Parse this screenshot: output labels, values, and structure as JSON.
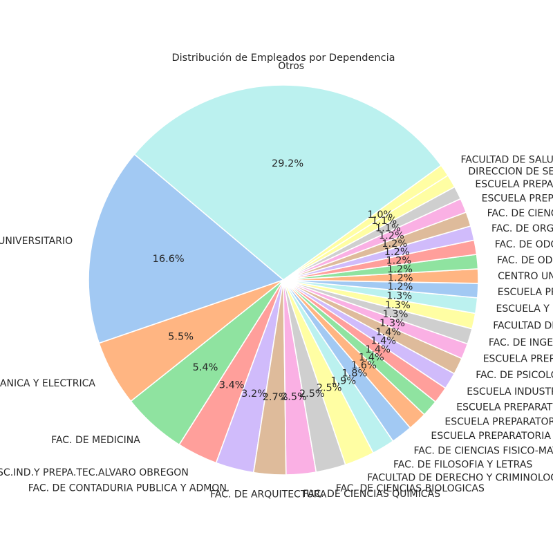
{
  "chart_data": {
    "type": "pie",
    "title": "Distribución de Empleados por Dependencia",
    "start_angle_deg": 36,
    "counterclockwise": true,
    "slices": [
      {
        "label": "Otros",
        "value": 29.2,
        "pct_label": "29.2%",
        "color": "#bbf1ef"
      },
      {
        "label": "HOSPITAL UNIVERSITARIO",
        "value": 16.6,
        "pct_label": "16.6%",
        "color": "#a2c9f3"
      },
      {
        "label": "FAC. DE INGENIERIA MECANICA Y ELECTRICA",
        "value": 5.5,
        "pct_label": "5.5%",
        "color": "#ffb582"
      },
      {
        "label": "FAC. DE MEDICINA",
        "value": 5.4,
        "pct_label": "5.4%",
        "color": "#8fe3a0"
      },
      {
        "label": "ESC.IND.Y PREPA.TEC.ALVARO OBREGON",
        "value": 3.4,
        "pct_label": "3.4%",
        "color": "#ff9f9b"
      },
      {
        "label": "FAC. DE CONTADURIA PUBLICA Y ADMON.",
        "value": 3.2,
        "pct_label": "3.2%",
        "color": "#d0bbfb"
      },
      {
        "label": "FAC. DE ARQUITECTURA",
        "value": 2.7,
        "pct_label": "2.7%",
        "color": "#debb9b"
      },
      {
        "label": "FAC. DE CIENCIAS QUIMICAS",
        "value": 2.5,
        "pct_label": "2.5%",
        "color": "#fab0e4"
      },
      {
        "label": "FAC. DE CIENCIAS BIOLOGICAS",
        "value": 2.5,
        "pct_label": "2.5%",
        "color": "#cfcfcf"
      },
      {
        "label": "FACULTAD DE DERECHO Y CRIMINOLOGIA",
        "value": 2.5,
        "pct_label": "2.5%",
        "color": "#fffea3"
      },
      {
        "label": "FAC. DE FILOSOFIA Y LETRAS",
        "value": 1.9,
        "pct_label": "1.9%",
        "color": "#bbf1ef"
      },
      {
        "label": "FAC. DE CIENCIAS FISICO-MATEMATICAS",
        "value": 1.8,
        "pct_label": "1.8%",
        "color": "#a2c9f3"
      },
      {
        "label": "ESCUELA PREPARATORIA",
        "value": 1.6,
        "pct_label": "1.6%",
        "color": "#ffb582"
      },
      {
        "label": "ESCUELA PREPARATORIA",
        "value": 1.4,
        "pct_label": "1.4%",
        "color": "#8fe3a0"
      },
      {
        "label": "ESCUELA PREPARATORIA",
        "value": 1.4,
        "pct_label": "1.4%",
        "color": "#ff9f9b"
      },
      {
        "label": "ESCUELA INDUSTRIAL",
        "value": 1.4,
        "pct_label": "1.4%",
        "color": "#d0bbfb"
      },
      {
        "label": "FAC. DE PSICOLOGIA",
        "value": 1.4,
        "pct_label": "1.4%",
        "color": "#debb9b"
      },
      {
        "label": "ESCUELA PREPARATORIA",
        "value": 1.3,
        "pct_label": "1.3%",
        "color": "#fab0e4"
      },
      {
        "label": "FAC. DE INGENIERIA CIVIL",
        "value": 1.3,
        "pct_label": "1.3%",
        "color": "#cfcfcf"
      },
      {
        "label": "FACULTAD DE",
        "value": 1.3,
        "pct_label": "1.3%",
        "color": "#fffea3"
      },
      {
        "label": "ESCUELA Y",
        "value": 1.3,
        "pct_label": "1.3%",
        "color": "#bbf1ef"
      },
      {
        "label": "ESCUELA PREPARATORIA",
        "value": 1.2,
        "pct_label": "1.2%",
        "color": "#a2c9f3"
      },
      {
        "label": "CENTRO UNIVERSITARIO",
        "value": 1.2,
        "pct_label": "1.2%",
        "color": "#ffb582"
      },
      {
        "label": "FAC. DE ODONTOLOGIA",
        "value": 1.2,
        "pct_label": "1.2%",
        "color": "#8fe3a0"
      },
      {
        "label": "FAC. DE ODONTOLOGIA",
        "value": 1.2,
        "pct_label": "1.2%",
        "color": "#ff9f9b"
      },
      {
        "label": "FAC. DE ORGANIZACION DEPORTIVA",
        "value": 1.2,
        "pct_label": "1.2%",
        "color": "#d0bbfb"
      },
      {
        "label": "FAC. DE CIENCIAS POLITICAS",
        "value": 1.2,
        "pct_label": "1.2%",
        "color": "#debb9b"
      },
      {
        "label": "ESCUELA PREPARATORIA",
        "value": 1.2,
        "pct_label": "1.2%",
        "color": "#fab0e4"
      },
      {
        "label": "ESCUELA PREPARATORIA",
        "value": 1.1,
        "pct_label": "1.1%",
        "color": "#cfcfcf"
      },
      {
        "label": "DIRECCION DE SERVICIOS",
        "value": 1.1,
        "pct_label": "1.1%",
        "color": "#fffea3"
      },
      {
        "label": "FACULTAD DE SALUD PUBLICA",
        "value": 1.0,
        "pct_label": "1.0%",
        "color": "#fffea3"
      }
    ]
  }
}
